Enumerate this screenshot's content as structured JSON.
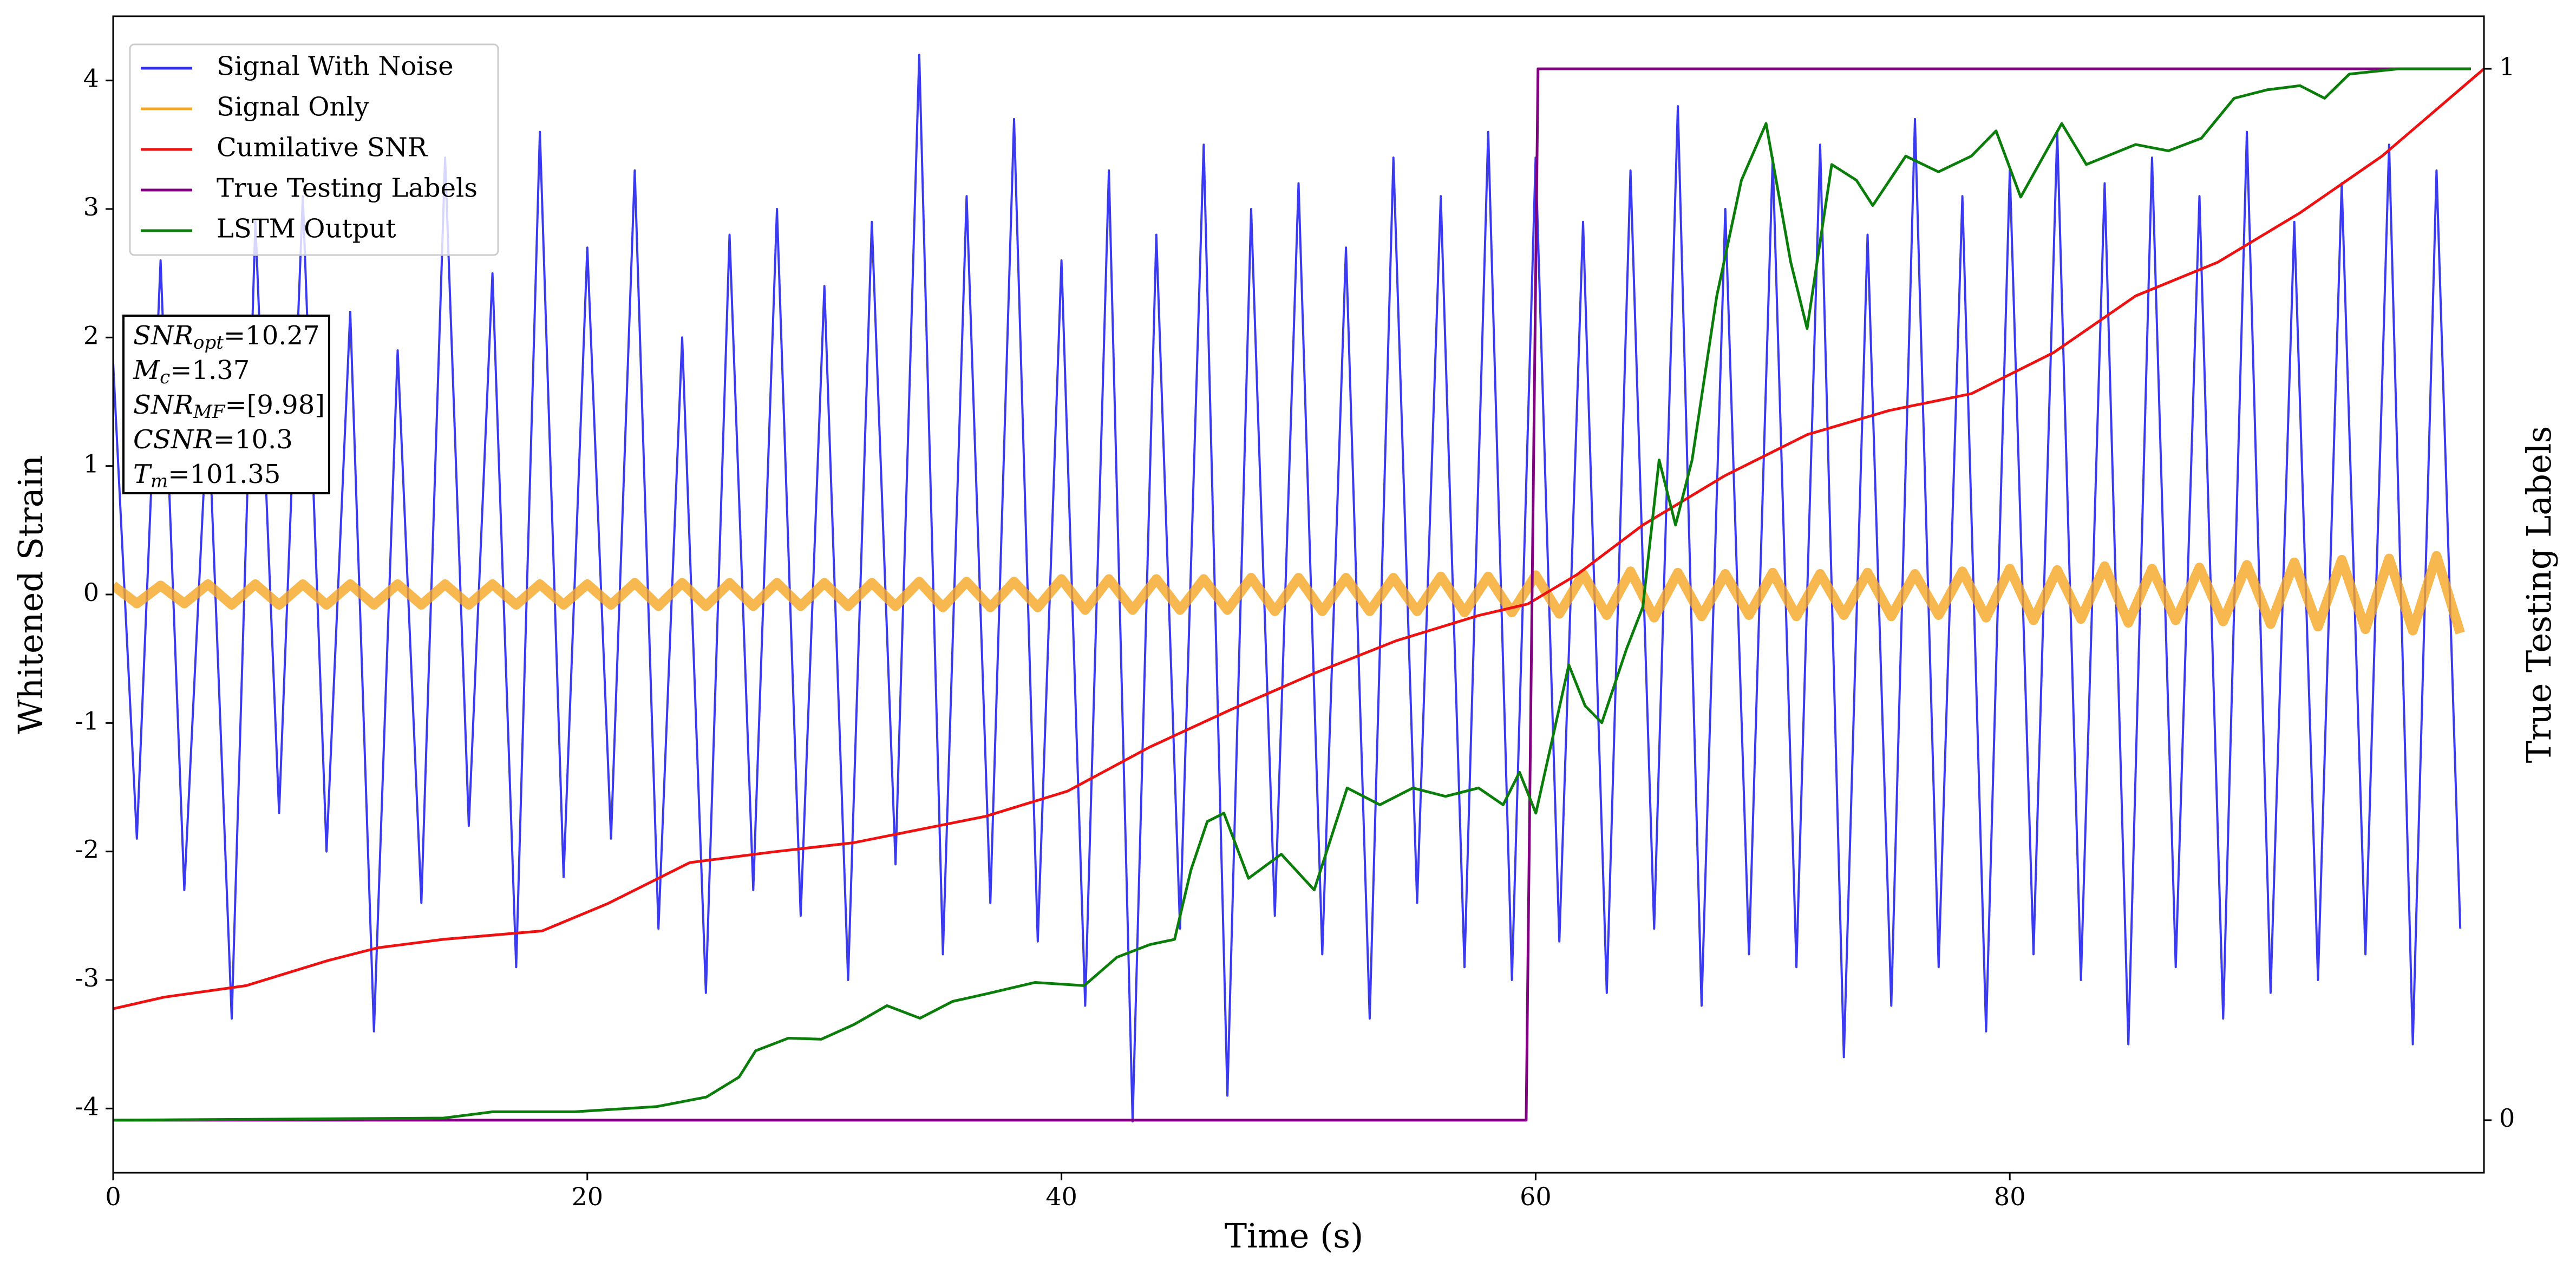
{
  "chart_data": {
    "type": "line",
    "xlabel": "Time (s)",
    "ylabel": "Whitened Strain",
    "y2label": "True Testing Labels",
    "xlim": [
      0,
      100
    ],
    "xticks": [
      0,
      20,
      40,
      60,
      80
    ],
    "ylim": [
      -4.5,
      4.5
    ],
    "yticks": [
      -4,
      -3,
      -2,
      -1,
      0,
      1,
      2,
      3,
      4
    ],
    "y2lim": [
      -0.05,
      1.05
    ],
    "y2ticks": [
      0,
      1
    ],
    "legend": "upper left",
    "series": [
      {
        "name": "Signal With Noise",
        "color": "#2f2ff2",
        "x": [
          0,
          1,
          2,
          3,
          4,
          5,
          6,
          7,
          8,
          9,
          10,
          11,
          12,
          13,
          14,
          15,
          16,
          17,
          18,
          19,
          20,
          21,
          22,
          23,
          24,
          25,
          26,
          27,
          28,
          29,
          30,
          31,
          32,
          33,
          34,
          35,
          36,
          37,
          38,
          39,
          40,
          41,
          42,
          43,
          44,
          45,
          46,
          47,
          48,
          49,
          50,
          51,
          52,
          53,
          54,
          55,
          56,
          57,
          58,
          59,
          60,
          61,
          62,
          63,
          64,
          65,
          66,
          67,
          68,
          69,
          70,
          71,
          72,
          73,
          74,
          75,
          76,
          77,
          78,
          79,
          80,
          81,
          82,
          83,
          84,
          85,
          86,
          87,
          88,
          89,
          90,
          91,
          92,
          93,
          94,
          95,
          96,
          97,
          98,
          99
        ],
        "values": [
          1.8,
          -1.9,
          2.6,
          -2.3,
          1.5,
          -3.3,
          2.9,
          -1.7,
          3.1,
          -2.0,
          2.2,
          -3.4,
          1.9,
          -2.4,
          3.4,
          -1.8,
          2.5,
          -2.9,
          3.6,
          -2.2,
          2.7,
          -1.9,
          3.3,
          -2.6,
          2.0,
          -3.1,
          2.8,
          -2.3,
          3.0,
          -2.5,
          2.4,
          -3.0,
          2.9,
          -2.1,
          4.2,
          -2.8,
          3.1,
          -2.4,
          3.7,
          -2.7,
          2.6,
          -3.2,
          3.3,
          -4.1,
          2.8,
          -2.6,
          3.5,
          -3.9,
          3.0,
          -2.5,
          3.2,
          -2.8,
          2.7,
          -3.3,
          3.4,
          -2.4,
          3.1,
          -2.9,
          3.6,
          -3.0,
          3.4,
          -2.7,
          2.9,
          -3.1,
          3.3,
          -2.6,
          3.8,
          -3.2,
          3.0,
          -2.8,
          3.4,
          -2.9,
          3.5,
          -3.6,
          2.8,
          -3.2,
          3.7,
          -2.9,
          3.1,
          -3.4,
          3.3,
          -2.8,
          3.6,
          -3.0,
          3.2,
          -3.5,
          3.4,
          -2.9,
          3.1,
          -3.3,
          3.6,
          -3.1,
          2.9,
          -3.0,
          3.2,
          -2.8,
          3.5,
          -3.5,
          3.3,
          -2.6
        ]
      },
      {
        "name": "Signal Only",
        "color": "#f5a623",
        "x": [
          0,
          1,
          2,
          3,
          4,
          5,
          6,
          7,
          8,
          9,
          10,
          11,
          12,
          13,
          14,
          15,
          16,
          17,
          18,
          19,
          20,
          21,
          22,
          23,
          24,
          25,
          26,
          27,
          28,
          29,
          30,
          31,
          32,
          33,
          34,
          35,
          36,
          37,
          38,
          39,
          40,
          41,
          42,
          43,
          44,
          45,
          46,
          47,
          48,
          49,
          50,
          51,
          52,
          53,
          54,
          55,
          56,
          57,
          58,
          59,
          60,
          61,
          62,
          63,
          64,
          65,
          66,
          67,
          68,
          69,
          70,
          71,
          72,
          73,
          74,
          75,
          76,
          77,
          78,
          79,
          80,
          81,
          82,
          83,
          84,
          85,
          86,
          87,
          88,
          89,
          90,
          91,
          92,
          93,
          94,
          95,
          96,
          97,
          98,
          99
        ],
        "values": [
          0.07,
          -0.07,
          0.07,
          -0.07,
          0.08,
          -0.08,
          0.08,
          -0.08,
          0.08,
          -0.08,
          0.08,
          -0.08,
          0.08,
          -0.08,
          0.08,
          -0.08,
          0.08,
          -0.08,
          0.08,
          -0.08,
          0.08,
          -0.08,
          0.09,
          -0.09,
          0.09,
          -0.09,
          0.09,
          -0.09,
          0.09,
          -0.09,
          0.09,
          -0.09,
          0.09,
          -0.09,
          0.1,
          -0.1,
          0.1,
          -0.1,
          0.1,
          -0.1,
          0.12,
          -0.12,
          0.12,
          -0.12,
          0.12,
          -0.12,
          0.12,
          -0.12,
          0.13,
          -0.13,
          0.13,
          -0.13,
          0.13,
          -0.13,
          0.13,
          -0.13,
          0.14,
          -0.14,
          0.14,
          -0.14,
          0.15,
          -0.15,
          0.16,
          -0.16,
          0.18,
          -0.18,
          0.17,
          -0.17,
          0.16,
          -0.16,
          0.17,
          -0.17,
          0.16,
          -0.16,
          0.17,
          -0.17,
          0.16,
          -0.16,
          0.18,
          -0.18,
          0.2,
          -0.2,
          0.19,
          -0.19,
          0.22,
          -0.22,
          0.2,
          -0.2,
          0.21,
          -0.21,
          0.23,
          -0.23,
          0.25,
          -0.25,
          0.27,
          -0.27,
          0.28,
          -0.28,
          0.3,
          -0.3
        ]
      },
      {
        "name": "Cumilative SNR",
        "color": "#ee1111",
        "axis": "y2",
        "x": [
          0,
          2.15,
          5.61,
          9.08,
          11.16,
          13.93,
          18.09,
          20.86,
          24.32,
          27.79,
          31.25,
          36.8,
          40.26,
          43.73,
          47.19,
          50.66,
          54.12,
          57.59,
          59.67,
          61.75,
          64.52,
          67.98,
          71.45,
          74.91,
          78.38,
          81.84,
          85.31,
          88.77,
          92.24,
          95.7,
          100
        ],
        "values": [
          0.106,
          0.117,
          0.128,
          0.152,
          0.164,
          0.172,
          0.18,
          0.206,
          0.245,
          0.255,
          0.264,
          0.289,
          0.313,
          0.355,
          0.391,
          0.425,
          0.456,
          0.48,
          0.491,
          0.519,
          0.566,
          0.613,
          0.652,
          0.675,
          0.691,
          0.73,
          0.784,
          0.816,
          0.863,
          0.917,
          1.0
        ]
      },
      {
        "name": "True Testing Labels",
        "color": "#800080",
        "axis": "y2",
        "x": [
          0,
          59.6,
          60.1,
          99.45
        ],
        "values": [
          0,
          0,
          1,
          1
        ]
      },
      {
        "name": "LSTM Output",
        "color": "#0a7d0a",
        "axis": "y2",
        "x": [
          0,
          13.93,
          16.01,
          19.47,
          22.94,
          25.02,
          26.4,
          27.1,
          28.48,
          29.87,
          31.25,
          32.64,
          34.03,
          35.41,
          36.8,
          38.88,
          40.96,
          42.34,
          43.73,
          44.77,
          45.46,
          46.15,
          46.85,
          47.89,
          49.27,
          50.66,
          52.05,
          53.43,
          54.82,
          56.2,
          57.59,
          58.63,
          59.32,
          60.01,
          60.71,
          61.4,
          62.09,
          62.79,
          63.83,
          64.52,
          65.21,
          65.9,
          66.6,
          67.64,
          68.68,
          69.72,
          70.76,
          71.45,
          72.49,
          73.53,
          74.22,
          75.61,
          76.99,
          78.38,
          79.42,
          80.46,
          82.19,
          83.23,
          85.31,
          86.69,
          88.08,
          89.46,
          90.85,
          92.24,
          93.28,
          94.32,
          96.4,
          99.45
        ],
        "values": [
          0,
          0.002,
          0.008,
          0.008,
          0.013,
          0.022,
          0.041,
          0.066,
          0.078,
          0.077,
          0.091,
          0.109,
          0.097,
          0.113,
          0.12,
          0.131,
          0.128,
          0.155,
          0.167,
          0.172,
          0.238,
          0.284,
          0.292,
          0.23,
          0.253,
          0.219,
          0.316,
          0.3,
          0.316,
          0.308,
          0.316,
          0.3,
          0.331,
          0.292,
          0.363,
          0.433,
          0.394,
          0.378,
          0.448,
          0.488,
          0.628,
          0.566,
          0.628,
          0.784,
          0.894,
          0.948,
          0.816,
          0.753,
          0.909,
          0.894,
          0.87,
          0.917,
          0.902,
          0.917,
          0.941,
          0.878,
          0.948,
          0.909,
          0.928,
          0.922,
          0.934,
          0.972,
          0.98,
          0.984,
          0.972,
          0.995,
          1.0,
          1.0
        ]
      }
    ],
    "annotation": [
      {
        "symbol": "SNR",
        "sub": "opt",
        "text": "=10.27"
      },
      {
        "symbol": "M",
        "sub": "c",
        "text": "=1.37"
      },
      {
        "symbol": "SNR",
        "sub": "MF",
        "text": "=[9.98]"
      },
      {
        "symbol": "CSNR",
        "text": "=10.3"
      },
      {
        "symbol": "T",
        "sub": "m",
        "text": "=101.35"
      }
    ]
  }
}
